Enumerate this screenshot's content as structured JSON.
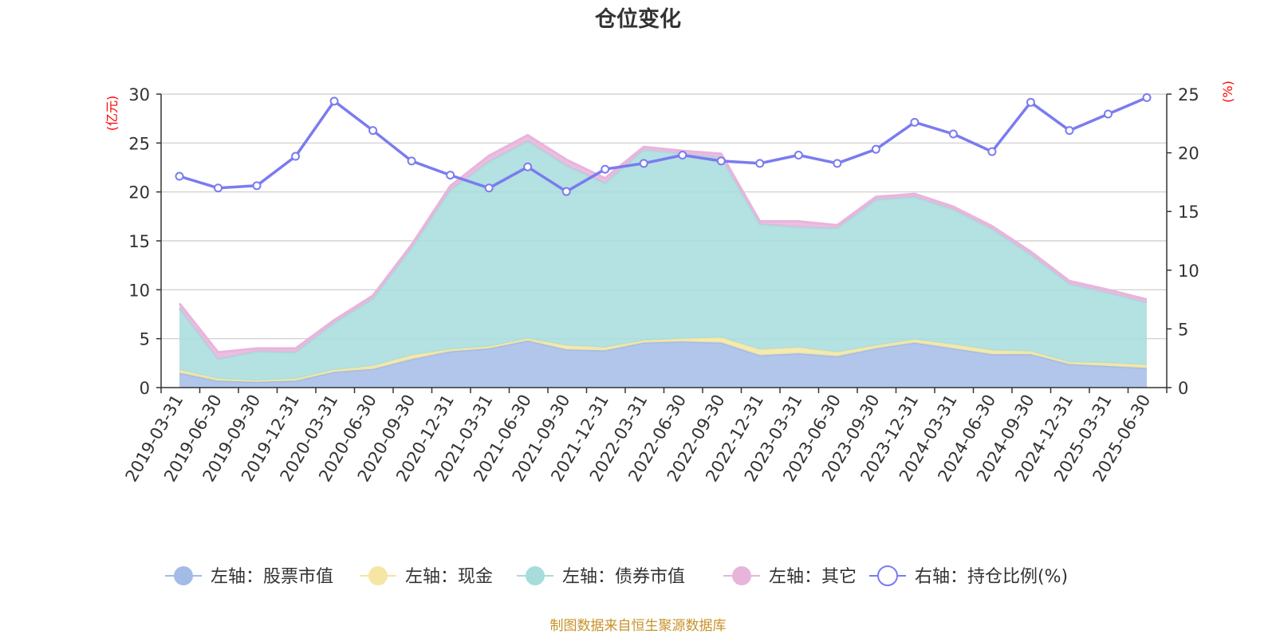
{
  "chart_data": {
    "type": "area",
    "title": "仓位变化",
    "left_axis": {
      "unit": "(亿元)",
      "ylim": [
        0,
        30
      ],
      "ticks": [
        0,
        5,
        10,
        15,
        20,
        25,
        30
      ]
    },
    "right_axis": {
      "unit": "(%)",
      "ylim": [
        0,
        25
      ],
      "ticks": [
        0,
        5,
        10,
        15,
        20,
        25
      ]
    },
    "categories": [
      "2019-03-31",
      "2019-06-30",
      "2019-09-30",
      "2019-12-31",
      "2020-03-31",
      "2020-06-30",
      "2020-09-30",
      "2020-12-31",
      "2021-03-31",
      "2021-06-30",
      "2021-09-30",
      "2021-12-31",
      "2022-03-31",
      "2022-06-30",
      "2022-09-30",
      "2022-12-31",
      "2023-03-31",
      "2023-06-30",
      "2023-09-30",
      "2023-12-31",
      "2024-03-31",
      "2024-06-30",
      "2024-09-30",
      "2024-12-31",
      "2025-03-31",
      "2025-06-30"
    ],
    "stacked_series": [
      {
        "name": "左轴：股票市值",
        "color": "#a3bce6",
        "values": [
          1.5,
          0.7,
          0.6,
          0.7,
          1.6,
          1.9,
          2.9,
          3.7,
          4.0,
          4.8,
          3.9,
          3.8,
          4.6,
          4.7,
          4.6,
          3.3,
          3.5,
          3.2,
          4.0,
          4.6,
          4.0,
          3.4,
          3.4,
          2.4,
          2.2,
          2.0
        ]
      },
      {
        "name": "左轴：现金",
        "color": "#f5e6a3",
        "values": [
          0.3,
          0.2,
          0.1,
          0.2,
          0.2,
          0.3,
          0.4,
          0.2,
          0.2,
          0.2,
          0.4,
          0.3,
          0.2,
          0.3,
          0.5,
          0.6,
          0.6,
          0.4,
          0.3,
          0.3,
          0.4,
          0.4,
          0.3,
          0.2,
          0.3,
          0.3
        ]
      },
      {
        "name": "左轴：债券市值",
        "color": "#a7dcdc",
        "values": [
          6.3,
          2.0,
          3.0,
          2.7,
          4.8,
          6.9,
          11.0,
          16.3,
          18.9,
          20.2,
          18.4,
          16.8,
          19.5,
          18.9,
          18.4,
          12.8,
          12.3,
          12.7,
          14.9,
          14.6,
          13.8,
          12.4,
          9.9,
          8.0,
          7.2,
          6.4
        ]
      },
      {
        "name": "左轴：其它",
        "color": "#e8b4dc",
        "values": [
          0.5,
          0.7,
          0.3,
          0.4,
          0.3,
          0.3,
          0.3,
          0.4,
          0.6,
          0.6,
          0.6,
          0.5,
          0.3,
          0.3,
          0.4,
          0.3,
          0.6,
          0.3,
          0.3,
          0.3,
          0.3,
          0.3,
          0.3,
          0.3,
          0.3,
          0.3
        ]
      }
    ],
    "line_series": {
      "name": "右轴：持仓比例(%)",
      "color": "#7b7bf0",
      "values": [
        18.0,
        17.0,
        17.2,
        19.7,
        24.4,
        21.9,
        19.3,
        18.1,
        17.0,
        18.8,
        16.7,
        18.6,
        19.1,
        19.8,
        19.3,
        19.1,
        19.8,
        19.1,
        20.3,
        22.6,
        21.6,
        20.1,
        24.3,
        21.9,
        23.3,
        24.7
      ]
    },
    "grid": true,
    "legend_position": "bottom"
  },
  "footer": {
    "source": "制图数据来自恒生聚源数据库"
  },
  "colors": {
    "axis_unit": "#ff0000",
    "source_text": "#c8922a",
    "grid": "#cccccc",
    "axis": "#333333"
  }
}
